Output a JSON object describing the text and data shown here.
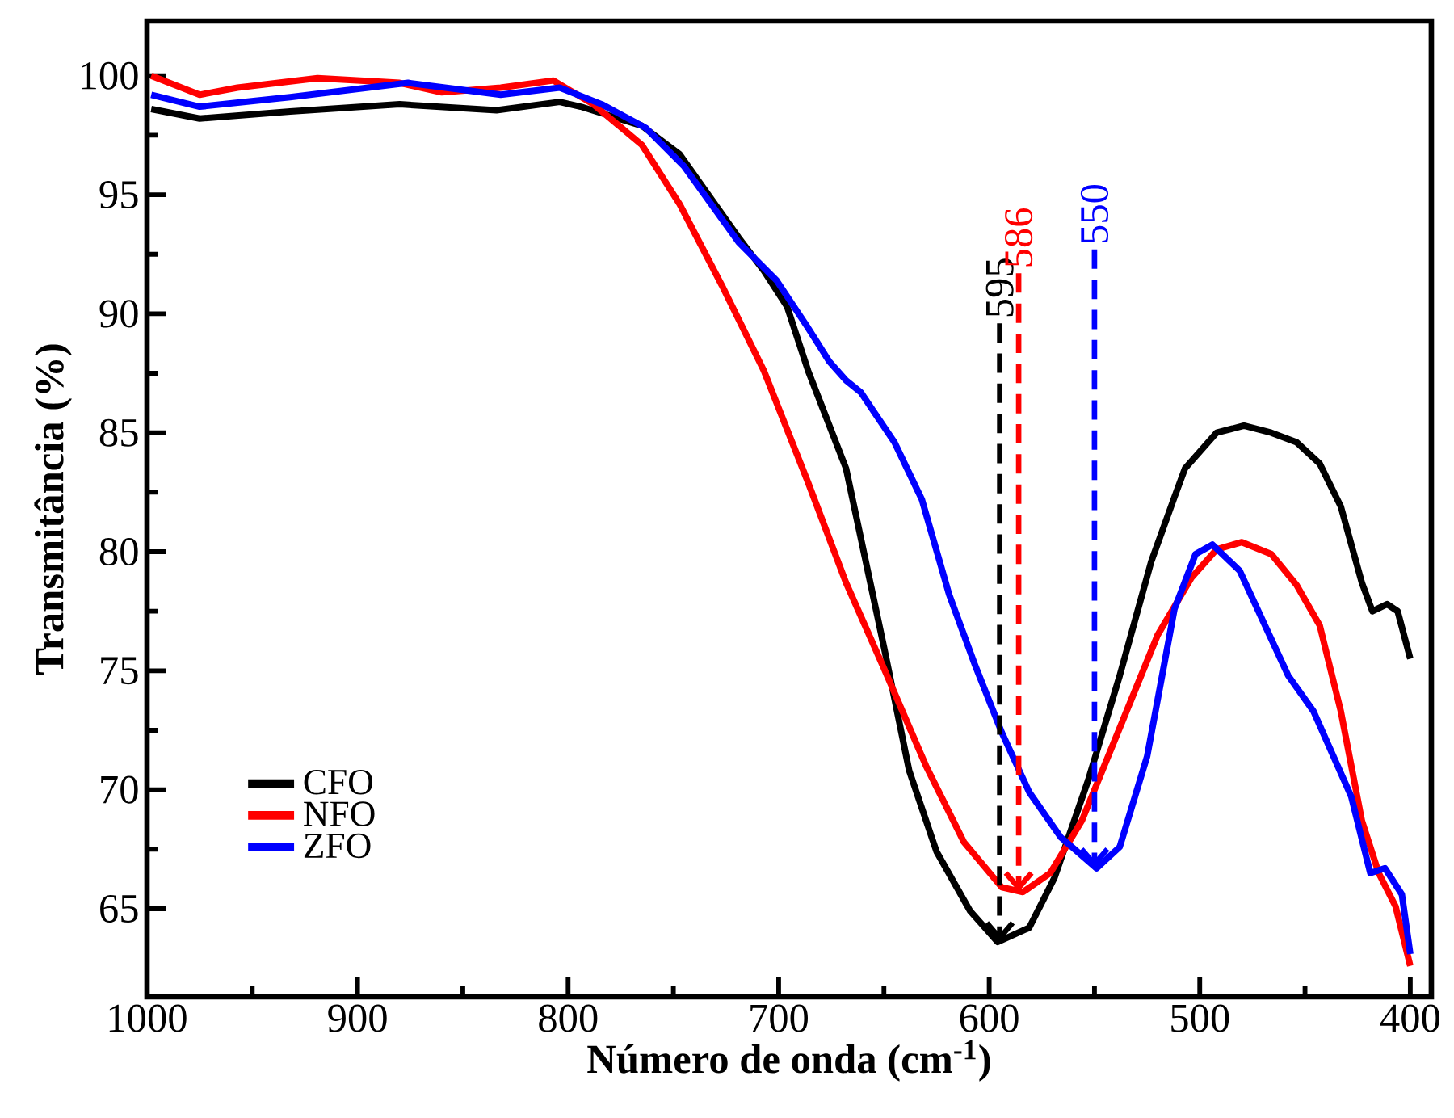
{
  "chart_data": {
    "type": "line",
    "xlabel": "Número de onda (cm$^{-1}$)",
    "ylabel": "Transmitância (%)",
    "xlim": [
      1000,
      390
    ],
    "ylim": [
      61.3,
      102.3
    ],
    "xticks": [
      1000,
      900,
      800,
      700,
      600,
      500,
      400
    ],
    "yticks": [
      65,
      70,
      75,
      80,
      85,
      90,
      95,
      100
    ],
    "legend": "bottom left",
    "marker": "none",
    "line_style": "solid",
    "series": [
      {
        "name": "CFO",
        "color": "#000000",
        "x": [
          998,
          975,
          932,
          880,
          834,
          804,
          794,
          765,
          747,
          719,
          707,
          696,
          686,
          668,
          650,
          638,
          625,
          609,
          596,
          581,
          569,
          553,
          538,
          523,
          512,
          507,
          492,
          479,
          466,
          454,
          443,
          433,
          423,
          418,
          411,
          406,
          400
        ],
        "values": [
          98.6,
          98.2,
          98.5,
          98.8,
          98.55,
          98.9,
          98.7,
          97.9,
          96.7,
          93.2,
          91.8,
          90.3,
          87.6,
          83.5,
          76.0,
          70.8,
          67.4,
          64.9,
          63.6,
          64.2,
          66.3,
          70.4,
          74.8,
          79.6,
          82.3,
          83.5,
          85.0,
          85.3,
          85.0,
          84.6,
          83.7,
          81.9,
          78.7,
          77.5,
          77.8,
          77.5,
          75.5
        ]
      },
      {
        "name": "NFO",
        "color": "#ff0000",
        "x": [
          998,
          975,
          957,
          919,
          880,
          860,
          832,
          807,
          788,
          765,
          747,
          727,
          707,
          686,
          668,
          650,
          630,
          612,
          594,
          584,
          571,
          556,
          538,
          520,
          504,
          492,
          480,
          466,
          454,
          443,
          433,
          423,
          415,
          407,
          400
        ],
        "values": [
          100.0,
          99.2,
          99.5,
          99.9,
          99.7,
          99.3,
          99.5,
          99.8,
          98.8,
          97.1,
          94.6,
          91.2,
          87.6,
          82.9,
          78.7,
          75.1,
          71.0,
          67.8,
          65.9,
          65.7,
          66.5,
          68.7,
          72.6,
          76.5,
          78.9,
          80.1,
          80.4,
          79.9,
          78.6,
          76.9,
          73.3,
          68.7,
          66.5,
          65.1,
          62.6
        ]
      },
      {
        "name": "ZFO",
        "color": "#0000ff",
        "x": [
          998,
          975,
          932,
          876,
          832,
          804,
          784,
          763,
          745,
          719,
          701,
          686,
          676,
          668,
          661,
          645,
          632,
          619,
          607,
          594,
          581,
          566,
          549,
          538,
          525,
          512,
          502,
          494,
          481,
          469,
          458,
          446,
          428,
          419,
          412,
          404,
          400
        ],
        "values": [
          99.2,
          98.7,
          99.1,
          99.7,
          99.2,
          99.5,
          98.8,
          97.8,
          96.2,
          93.0,
          91.4,
          89.4,
          88.0,
          87.2,
          86.7,
          84.6,
          82.2,
          78.2,
          75.3,
          72.4,
          69.9,
          68.0,
          66.7,
          67.6,
          71.4,
          77.6,
          79.9,
          80.3,
          79.2,
          76.9,
          74.8,
          73.3,
          69.7,
          66.5,
          66.7,
          65.6,
          63.1
        ]
      }
    ],
    "annotations": [
      {
        "text": "595",
        "x": 595,
        "y": 63.6
      },
      {
        "text": "586",
        "x": 586,
        "y": 65.7
      },
      {
        "text": "550",
        "x": 550,
        "y": 66.7
      }
    ]
  }
}
